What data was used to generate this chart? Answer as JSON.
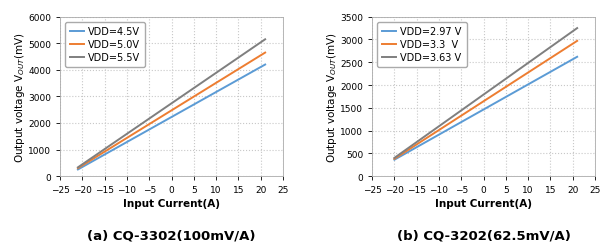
{
  "chart_a": {
    "title": "(a) CQ-3302(100mV/A)",
    "ylabel": "Output voltage V$_{OUT}$(mV)",
    "xlabel": "Input Current(A)",
    "xlim": [
      -25,
      25
    ],
    "ylim": [
      0,
      6000
    ],
    "yticks": [
      0,
      1000,
      2000,
      3000,
      4000,
      5000,
      6000
    ],
    "xticks": [
      -25,
      -20,
      -15,
      -10,
      -5,
      0,
      5,
      10,
      15,
      20,
      25
    ],
    "lines": [
      {
        "label": "VDD=4.5V",
        "color": "#5b9bd5",
        "x": [
          -21,
          21
        ],
        "y": [
          250,
          4200
        ]
      },
      {
        "label": "VDD=5.0V",
        "color": "#ed7d31",
        "x": [
          -21,
          21
        ],
        "y": [
          300,
          4650
        ]
      },
      {
        "label": "VDD=5.5V",
        "color": "#7f7f7f",
        "x": [
          -21,
          21
        ],
        "y": [
          330,
          5150
        ]
      }
    ]
  },
  "chart_b": {
    "title": "(b) CQ-3202(62.5mV/A)",
    "ylabel": "Output voltage V$_{OUT}$(mV)",
    "xlabel": "Input Current(A)",
    "xlim": [
      -25,
      25
    ],
    "ylim": [
      0,
      3500
    ],
    "yticks": [
      0,
      500,
      1000,
      1500,
      2000,
      2500,
      3000,
      3500
    ],
    "xticks": [
      -25,
      -20,
      -15,
      -10,
      -5,
      0,
      5,
      10,
      15,
      20,
      25
    ],
    "lines": [
      {
        "label": "VDD=2.97 V",
        "color": "#5b9bd5",
        "x": [
          -20,
          21
        ],
        "y": [
          360,
          2620
        ]
      },
      {
        "label": "VDD=3.3  V",
        "color": "#ed7d31",
        "x": [
          -20,
          21
        ],
        "y": [
          380,
          2970
        ]
      },
      {
        "label": "VDD=3.63 V",
        "color": "#7f7f7f",
        "x": [
          -20,
          21
        ],
        "y": [
          400,
          3250
        ]
      }
    ]
  },
  "bg_color": "#ffffff",
  "grid_color": "#c8c8c8",
  "title_fontsize": 9.5,
  "label_fontsize": 7.5,
  "tick_fontsize": 6.5,
  "legend_fontsize": 7,
  "line_width": 1.4
}
